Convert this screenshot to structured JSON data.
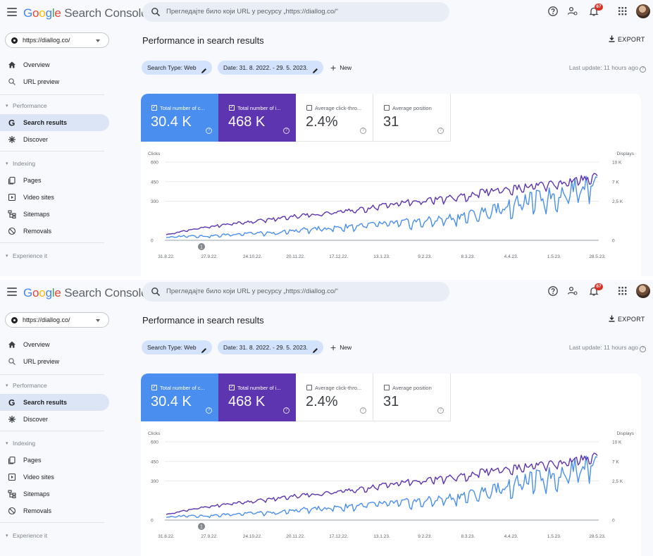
{
  "app": {
    "logo_google": [
      "G",
      "o",
      "o",
      "g",
      "l",
      "e"
    ],
    "logo_suffix": "Search Console",
    "search_placeholder": "Прегледајте било који URL у ресурсу „https://diallog.co/“",
    "notification_count": "67"
  },
  "sidebar": {
    "property": "https://diallog.co/",
    "items_top": [
      {
        "label": "Overview",
        "icon": "home-icon"
      },
      {
        "label": "URL preview",
        "icon": "search-icon"
      }
    ],
    "section_performance": "Performance",
    "items_performance": [
      {
        "label": "Search results",
        "icon": "google-g-icon",
        "active": true
      },
      {
        "label": "Discover",
        "icon": "asterisk-icon",
        "active": false
      }
    ],
    "section_indexing": "Indexing",
    "items_indexing": [
      {
        "label": "Pages",
        "icon": "pages-icon"
      },
      {
        "label": "Video sites",
        "icon": "video-icon"
      },
      {
        "label": "Sitemaps",
        "icon": "sitemap-icon"
      },
      {
        "label": "Removals",
        "icon": "removal-icon"
      }
    ],
    "section_experience": "Experience it"
  },
  "main": {
    "title": "Performance in search results",
    "export_label": "EXPORT",
    "filters": [
      "Search Type: Web",
      "Date: 31. 8. 2022. - 29. 5. 2023."
    ],
    "new_label": "New",
    "last_update": "Last update: 11 hours ago"
  },
  "metrics": [
    {
      "label": "Total number of c...",
      "value": "30.4 K",
      "checked": true,
      "color": "#4a8ff0"
    },
    {
      "label": "Total number of i...",
      "value": "468 K",
      "checked": true,
      "color": "#5d35b1"
    },
    {
      "label": "Average click-thro...",
      "value": "2.4%",
      "checked": false
    },
    {
      "label": "Average position",
      "value": "31",
      "checked": false
    }
  ],
  "chart_data": {
    "type": "line",
    "left_axis_label": "Clicks",
    "right_axis_label": "Displays",
    "left_ticks": [
      "600",
      "450",
      "300",
      "0"
    ],
    "right_ticks": [
      "10 K",
      "7 K",
      "2,5 K",
      "0"
    ],
    "x_tick_labels": [
      "31.8.22.",
      "27.9.22.",
      "24.10.22.",
      "20.11.22.",
      "17.12.22.",
      "13.1.23.",
      "9.2.23.",
      "8.3.23.",
      "4.4.23.",
      "1.5.23.",
      "28.5.23."
    ],
    "series": [
      {
        "name": "Total number of clicks",
        "color": "#4a8ff0",
        "axis": "left",
        "values": [
          20,
          35,
          30,
          45,
          55,
          50,
          75,
          85,
          95,
          110,
          120,
          130,
          140,
          160,
          185,
          215,
          260,
          300,
          330,
          380,
          470
        ]
      },
      {
        "name": "Total number of displays",
        "color": "#5d35b1",
        "axis": "right",
        "values": [
          700,
          1300,
          1700,
          2100,
          2400,
          2700,
          3100,
          3300,
          3600,
          3900,
          4400,
          4800,
          5000,
          5300,
          5600,
          6300,
          6500,
          6800,
          7200,
          7500,
          8200
        ]
      }
    ],
    "annotation": "1"
  }
}
